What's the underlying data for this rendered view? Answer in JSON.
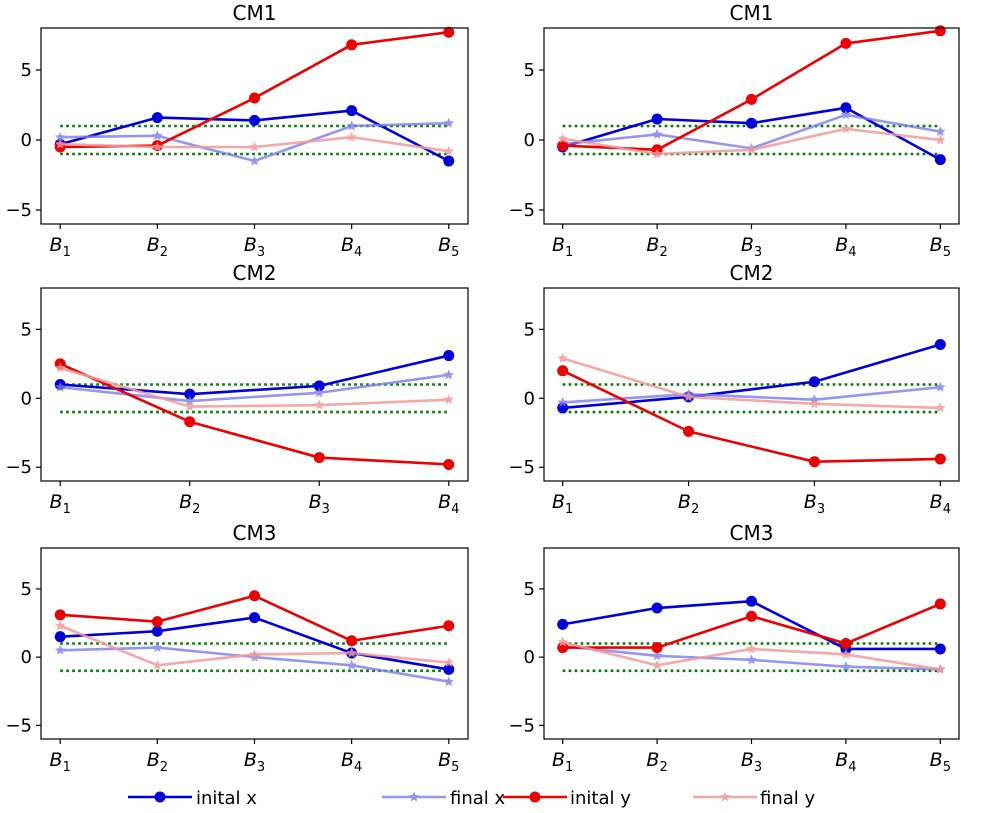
{
  "legend": {
    "placement": "bottom-center",
    "entries": [
      {
        "key": "init_x",
        "label": "inital x"
      },
      {
        "key": "final_x",
        "label": "final x"
      },
      {
        "key": "init_y",
        "label": "inital y"
      },
      {
        "key": "final_y",
        "label": "final y"
      }
    ]
  },
  "chart_data": [
    {
      "type": "line",
      "title": "CM1",
      "categories": [
        "B",
        "B",
        "B",
        "B",
        "B"
      ],
      "category_subscripts": [
        "1",
        "2",
        "3",
        "4",
        "5"
      ],
      "ylim": [
        -6,
        8
      ],
      "yticks": [
        -5,
        0,
        5
      ],
      "ytick_labels": [
        "−5",
        "0",
        "5"
      ],
      "reference_lines": [
        -1,
        1
      ],
      "series": [
        {
          "key": "init_x",
          "name": "inital x",
          "values": [
            -0.3,
            1.6,
            1.4,
            2.1,
            -1.5
          ]
        },
        {
          "key": "final_x",
          "name": "final x",
          "values": [
            0.2,
            0.3,
            -1.5,
            1.0,
            1.2
          ]
        },
        {
          "key": "init_y",
          "name": "inital y",
          "values": [
            -0.5,
            -0.4,
            3.0,
            6.8,
            7.7
          ]
        },
        {
          "key": "final_y",
          "name": "final y",
          "values": [
            -0.3,
            -0.5,
            -0.5,
            0.2,
            -0.8
          ]
        }
      ]
    },
    {
      "type": "line",
      "title": "CM1",
      "categories": [
        "B",
        "B",
        "B",
        "B",
        "B"
      ],
      "category_subscripts": [
        "1",
        "2",
        "3",
        "4",
        "5"
      ],
      "ylim": [
        -6,
        8
      ],
      "yticks": [
        -5,
        0,
        5
      ],
      "ytick_labels": [
        "−5",
        "0",
        "5"
      ],
      "reference_lines": [
        -1,
        1
      ],
      "series": [
        {
          "key": "init_x",
          "name": "inital x",
          "values": [
            -0.5,
            1.5,
            1.2,
            2.3,
            -1.4
          ]
        },
        {
          "key": "final_x",
          "name": "final x",
          "values": [
            -0.3,
            0.4,
            -0.6,
            1.8,
            0.6
          ]
        },
        {
          "key": "init_y",
          "name": "inital y",
          "values": [
            -0.4,
            -0.7,
            2.9,
            6.9,
            7.8
          ]
        },
        {
          "key": "final_y",
          "name": "final y",
          "values": [
            0.1,
            -1.0,
            -0.7,
            0.8,
            0.0
          ]
        }
      ]
    },
    {
      "type": "line",
      "title": "CM2",
      "categories": [
        "B",
        "B",
        "B",
        "B"
      ],
      "category_subscripts": [
        "1",
        "2",
        "3",
        "4"
      ],
      "ylim": [
        -6,
        8
      ],
      "yticks": [
        -5,
        0,
        5
      ],
      "ytick_labels": [
        "−5",
        "0",
        "5"
      ],
      "reference_lines": [
        -1,
        1
      ],
      "series": [
        {
          "key": "init_x",
          "name": "inital x",
          "values": [
            1.0,
            0.3,
            0.9,
            3.1
          ]
        },
        {
          "key": "final_x",
          "name": "final x",
          "values": [
            0.8,
            -0.2,
            0.4,
            1.7
          ]
        },
        {
          "key": "init_y",
          "name": "inital y",
          "values": [
            2.5,
            -1.7,
            -4.3,
            -4.8
          ]
        },
        {
          "key": "final_y",
          "name": "final y",
          "values": [
            2.2,
            -0.6,
            -0.5,
            -0.1
          ]
        }
      ]
    },
    {
      "type": "line",
      "title": "CM2",
      "categories": [
        "B",
        "B",
        "B",
        "B"
      ],
      "category_subscripts": [
        "1",
        "2",
        "3",
        "4"
      ],
      "ylim": [
        -6,
        8
      ],
      "yticks": [
        -5,
        0,
        5
      ],
      "ytick_labels": [
        "−5",
        "0",
        "5"
      ],
      "reference_lines": [
        -1,
        1
      ],
      "series": [
        {
          "key": "init_x",
          "name": "inital x",
          "values": [
            -0.7,
            0.1,
            1.2,
            3.9
          ]
        },
        {
          "key": "final_x",
          "name": "final x",
          "values": [
            -0.3,
            0.3,
            -0.1,
            0.8
          ]
        },
        {
          "key": "init_y",
          "name": "inital y",
          "values": [
            2.0,
            -2.4,
            -4.6,
            -4.4
          ]
        },
        {
          "key": "final_y",
          "name": "final y",
          "values": [
            2.9,
            0.1,
            -0.4,
            -0.7
          ]
        }
      ]
    },
    {
      "type": "line",
      "title": "CM3",
      "categories": [
        "B",
        "B",
        "B",
        "B",
        "B"
      ],
      "category_subscripts": [
        "1",
        "2",
        "3",
        "4",
        "5"
      ],
      "ylim": [
        -6,
        8
      ],
      "yticks": [
        -5,
        0,
        5
      ],
      "ytick_labels": [
        "−5",
        "0",
        "5"
      ],
      "reference_lines": [
        -1,
        1
      ],
      "series": [
        {
          "key": "init_x",
          "name": "inital x",
          "values": [
            1.5,
            1.9,
            2.9,
            0.3,
            -0.9
          ]
        },
        {
          "key": "final_x",
          "name": "final x",
          "values": [
            0.5,
            0.7,
            0.0,
            -0.6,
            -1.8
          ]
        },
        {
          "key": "init_y",
          "name": "inital y",
          "values": [
            3.1,
            2.6,
            4.5,
            1.2,
            2.3
          ]
        },
        {
          "key": "final_y",
          "name": "final y",
          "values": [
            2.3,
            -0.6,
            0.2,
            0.3,
            -0.4
          ]
        }
      ]
    },
    {
      "type": "line",
      "title": "CM3",
      "categories": [
        "B",
        "B",
        "B",
        "B",
        "B"
      ],
      "category_subscripts": [
        "1",
        "2",
        "3",
        "4",
        "5"
      ],
      "ylim": [
        -6,
        8
      ],
      "yticks": [
        -5,
        0,
        5
      ],
      "ytick_labels": [
        "−5",
        "0",
        "5"
      ],
      "reference_lines": [
        -1,
        1
      ],
      "series": [
        {
          "key": "init_x",
          "name": "inital x",
          "values": [
            2.4,
            3.6,
            4.1,
            0.6,
            0.6
          ]
        },
        {
          "key": "final_x",
          "name": "final x",
          "values": [
            0.8,
            0.1,
            -0.2,
            -0.7,
            -0.9
          ]
        },
        {
          "key": "init_y",
          "name": "inital y",
          "values": [
            0.7,
            0.7,
            3.0,
            1.0,
            3.9
          ]
        },
        {
          "key": "final_y",
          "name": "final y",
          "values": [
            1.1,
            -0.6,
            0.6,
            0.2,
            -0.9
          ]
        }
      ]
    }
  ],
  "colors": {
    "init_x": "#0000dd",
    "final_x": "#7b7bf0",
    "init_y": "#ee0000",
    "final_y": "#f49a9a",
    "reference_line": "#007700",
    "axis": "#000000"
  }
}
